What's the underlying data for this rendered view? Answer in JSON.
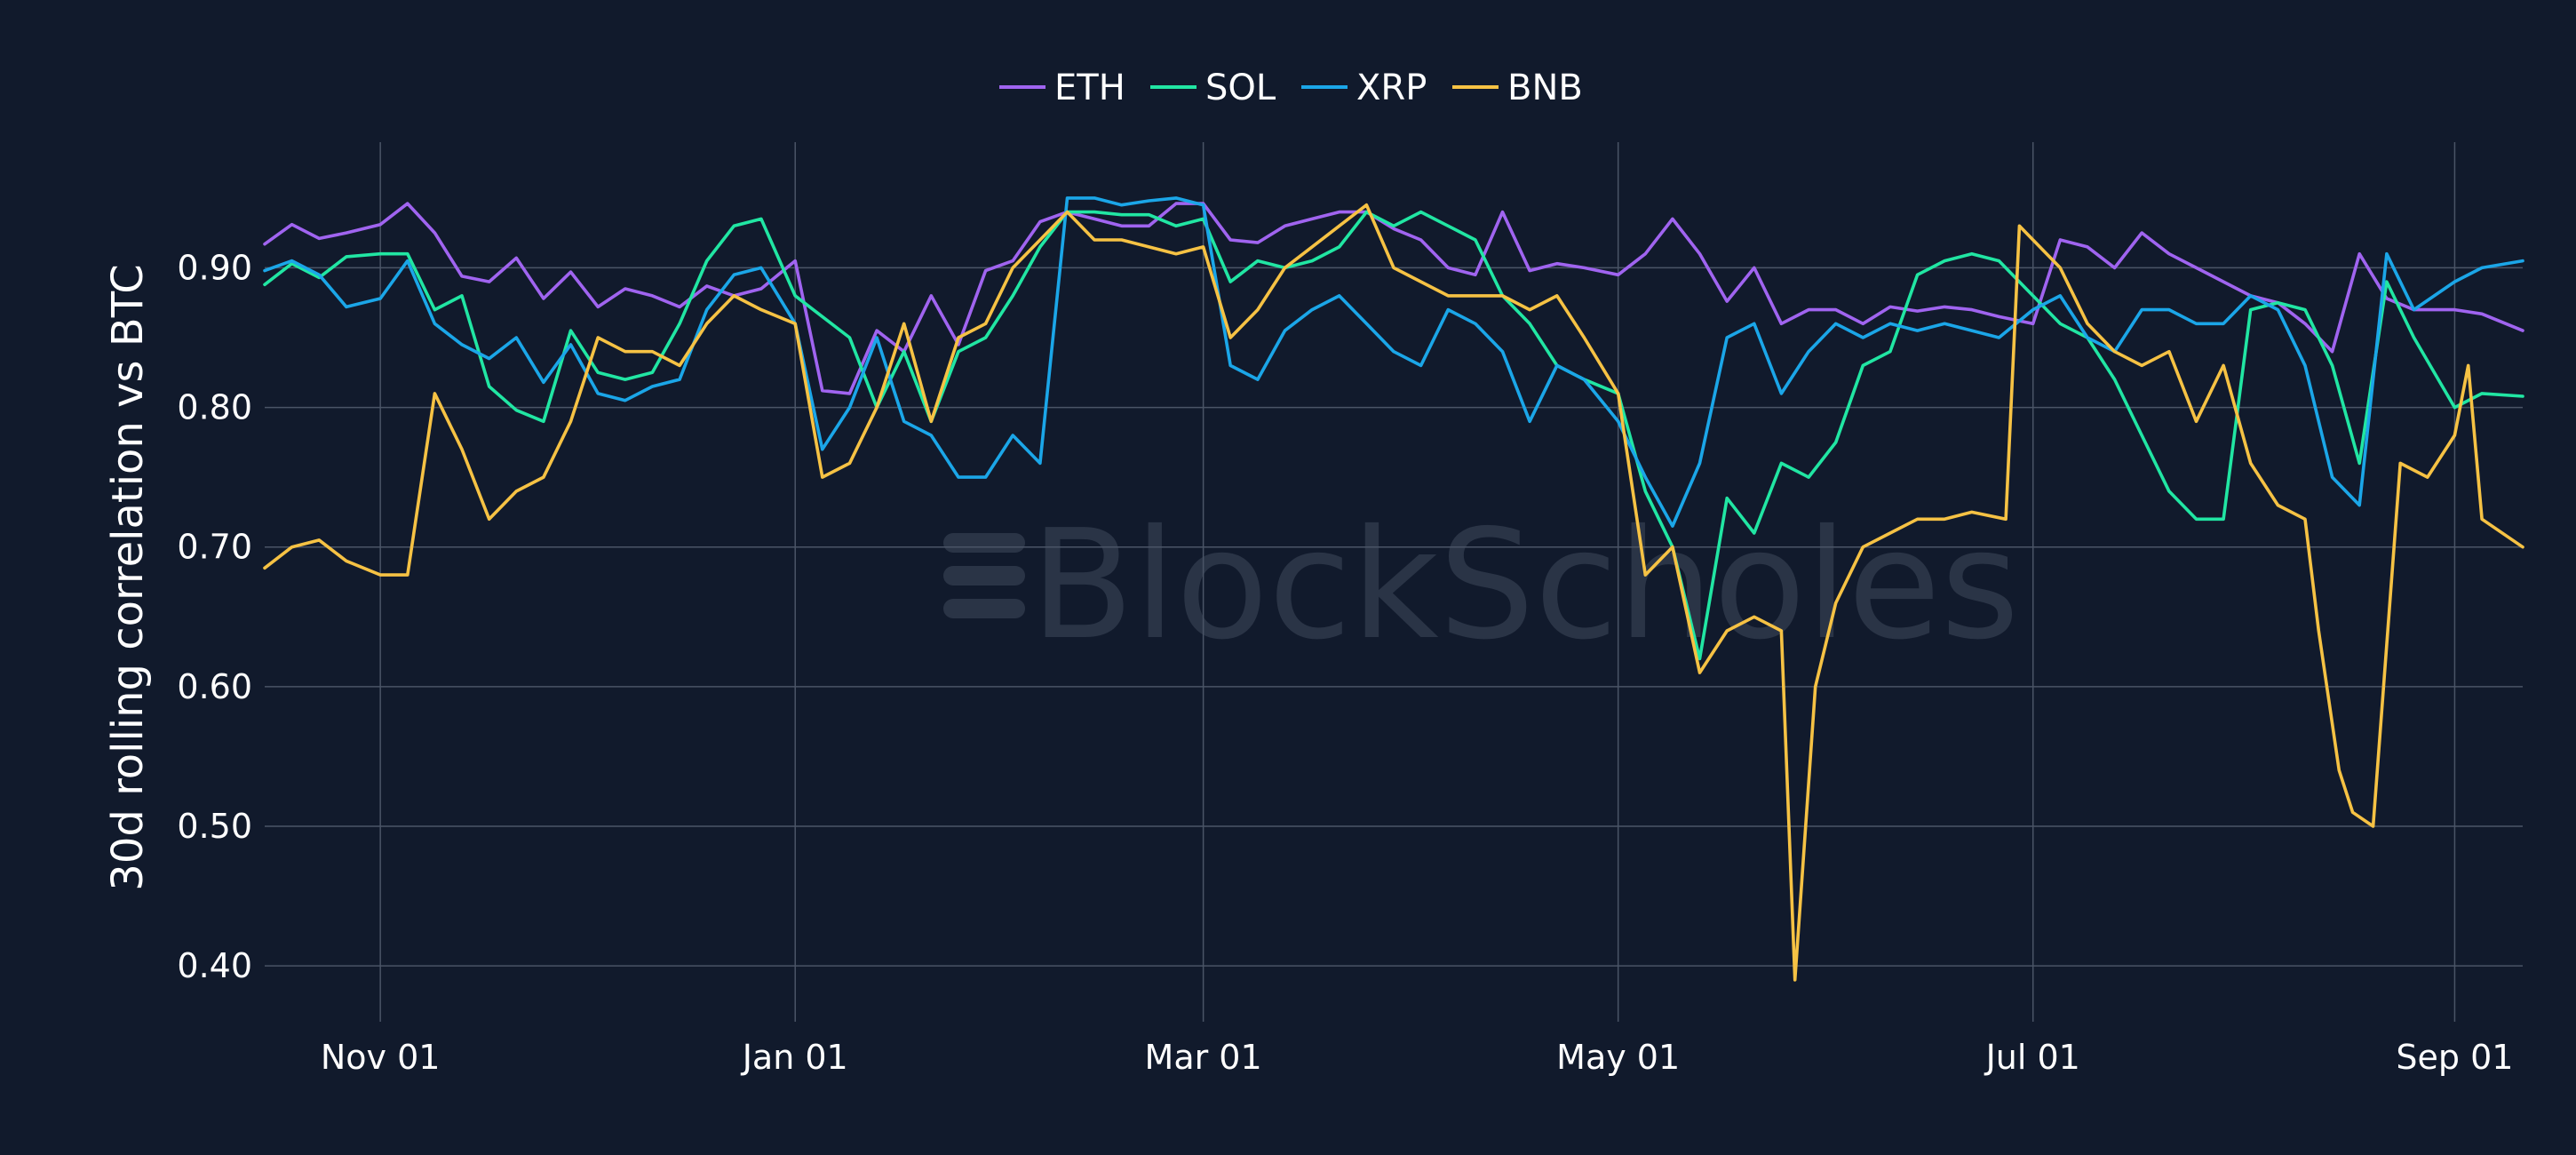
{
  "watermark": "BlockScholes",
  "chart_data": {
    "type": "line",
    "ylabel": "30d rolling correlation vs BTC",
    "xlabel": "",
    "ylim": [
      0.36,
      0.99
    ],
    "yticks": [
      0.4,
      0.5,
      0.6,
      0.7,
      0.8,
      0.9
    ],
    "ytick_labels": [
      "0.40",
      "0.50",
      "0.60",
      "0.70",
      "0.80",
      "0.90"
    ],
    "x_range": [
      "2023-10-15",
      "2024-09-11"
    ],
    "xticks": [
      "2023-11-01",
      "2024-01-01",
      "2024-03-01",
      "2024-05-01",
      "2024-07-01",
      "2024-09-01"
    ],
    "xtick_labels": [
      "Nov 01",
      "Jan 01",
      "Mar 01",
      "May 01",
      "Jul 01",
      "Sep 01"
    ],
    "grid": true,
    "legend_position": "top-center",
    "series": [
      {
        "name": "ETH",
        "color": "#a064f0",
        "x": [
          "2023-10-15",
          "2023-10-19",
          "2023-10-23",
          "2023-10-27",
          "2023-11-01",
          "2023-11-05",
          "2023-11-09",
          "2023-11-13",
          "2023-11-17",
          "2023-11-21",
          "2023-11-25",
          "2023-11-29",
          "2023-12-03",
          "2023-12-07",
          "2023-12-11",
          "2023-12-15",
          "2023-12-19",
          "2023-12-23",
          "2023-12-27",
          "2024-01-01",
          "2024-01-05",
          "2024-01-09",
          "2024-01-13",
          "2024-01-17",
          "2024-01-21",
          "2024-01-25",
          "2024-01-29",
          "2024-02-02",
          "2024-02-06",
          "2024-02-10",
          "2024-02-14",
          "2024-02-18",
          "2024-02-22",
          "2024-02-26",
          "2024-03-01",
          "2024-03-05",
          "2024-03-09",
          "2024-03-13",
          "2024-03-17",
          "2024-03-21",
          "2024-03-25",
          "2024-03-29",
          "2024-04-02",
          "2024-04-06",
          "2024-04-10",
          "2024-04-14",
          "2024-04-18",
          "2024-04-22",
          "2024-04-26",
          "2024-05-01",
          "2024-05-05",
          "2024-05-09",
          "2024-05-13",
          "2024-05-17",
          "2024-05-21",
          "2024-05-25",
          "2024-05-29",
          "2024-06-02",
          "2024-06-06",
          "2024-06-10",
          "2024-06-14",
          "2024-06-18",
          "2024-06-22",
          "2024-06-26",
          "2024-07-01",
          "2024-07-05",
          "2024-07-09",
          "2024-07-13",
          "2024-07-17",
          "2024-07-21",
          "2024-07-25",
          "2024-07-29",
          "2024-08-02",
          "2024-08-06",
          "2024-08-10",
          "2024-08-14",
          "2024-08-18",
          "2024-08-22",
          "2024-08-26",
          "2024-09-01",
          "2024-09-05",
          "2024-09-11"
        ],
        "values": [
          0.917,
          0.931,
          0.921,
          0.925,
          0.931,
          0.946,
          0.925,
          0.894,
          0.89,
          0.907,
          0.878,
          0.897,
          0.872,
          0.885,
          0.88,
          0.872,
          0.887,
          0.88,
          0.885,
          0.905,
          0.812,
          0.81,
          0.855,
          0.84,
          0.88,
          0.845,
          0.898,
          0.905,
          0.933,
          0.94,
          0.935,
          0.93,
          0.93,
          0.946,
          0.946,
          0.92,
          0.918,
          0.93,
          0.935,
          0.94,
          0.94,
          0.928,
          0.92,
          0.9,
          0.895,
          0.94,
          0.898,
          0.903,
          0.9,
          0.895,
          0.91,
          0.935,
          0.91,
          0.876,
          0.9,
          0.86,
          0.87,
          0.87,
          0.86,
          0.872,
          0.869,
          0.872,
          0.87,
          0.865,
          0.86,
          0.92,
          0.915,
          0.9,
          0.925,
          0.91,
          0.9,
          0.89,
          0.88,
          0.875,
          0.86,
          0.84,
          0.91,
          0.878,
          0.87,
          0.87,
          0.867,
          0.855
        ]
      },
      {
        "name": "SOL",
        "color": "#21e6a3",
        "x": [
          "2023-10-15",
          "2023-10-19",
          "2023-10-23",
          "2023-10-27",
          "2023-11-01",
          "2023-11-05",
          "2023-11-09",
          "2023-11-13",
          "2023-11-17",
          "2023-11-21",
          "2023-11-25",
          "2023-11-29",
          "2023-12-03",
          "2023-12-07",
          "2023-12-11",
          "2023-12-15",
          "2023-12-19",
          "2023-12-23",
          "2023-12-27",
          "2024-01-01",
          "2024-01-05",
          "2024-01-09",
          "2024-01-13",
          "2024-01-17",
          "2024-01-21",
          "2024-01-25",
          "2024-01-29",
          "2024-02-02",
          "2024-02-06",
          "2024-02-10",
          "2024-02-14",
          "2024-02-18",
          "2024-02-22",
          "2024-02-26",
          "2024-03-01",
          "2024-03-05",
          "2024-03-09",
          "2024-03-13",
          "2024-03-17",
          "2024-03-21",
          "2024-03-25",
          "2024-03-29",
          "2024-04-02",
          "2024-04-06",
          "2024-04-10",
          "2024-04-14",
          "2024-04-18",
          "2024-04-22",
          "2024-04-26",
          "2024-05-01",
          "2024-05-05",
          "2024-05-09",
          "2024-05-13",
          "2024-05-17",
          "2024-05-21",
          "2024-05-25",
          "2024-05-29",
          "2024-06-02",
          "2024-06-06",
          "2024-06-10",
          "2024-06-14",
          "2024-06-18",
          "2024-06-22",
          "2024-06-26",
          "2024-07-01",
          "2024-07-05",
          "2024-07-09",
          "2024-07-13",
          "2024-07-17",
          "2024-07-21",
          "2024-07-25",
          "2024-07-29",
          "2024-08-02",
          "2024-08-06",
          "2024-08-10",
          "2024-08-14",
          "2024-08-18",
          "2024-08-22",
          "2024-08-26",
          "2024-09-01",
          "2024-09-05",
          "2024-09-11"
        ],
        "values": [
          0.888,
          0.903,
          0.893,
          0.908,
          0.91,
          0.91,
          0.87,
          0.88,
          0.815,
          0.798,
          0.79,
          0.855,
          0.825,
          0.82,
          0.825,
          0.86,
          0.905,
          0.93,
          0.935,
          0.88,
          0.865,
          0.85,
          0.8,
          0.84,
          0.79,
          0.84,
          0.85,
          0.88,
          0.915,
          0.94,
          0.94,
          0.938,
          0.938,
          0.93,
          0.935,
          0.89,
          0.905,
          0.9,
          0.905,
          0.915,
          0.94,
          0.93,
          0.94,
          0.93,
          0.92,
          0.88,
          0.86,
          0.83,
          0.82,
          0.81,
          0.74,
          0.7,
          0.62,
          0.735,
          0.71,
          0.76,
          0.75,
          0.775,
          0.83,
          0.84,
          0.895,
          0.905,
          0.91,
          0.905,
          0.88,
          0.86,
          0.85,
          0.82,
          0.78,
          0.74,
          0.72,
          0.72,
          0.87,
          0.875,
          0.87,
          0.83,
          0.76,
          0.89,
          0.85,
          0.8,
          0.81,
          0.808
        ]
      },
      {
        "name": "XRP",
        "color": "#1ba6e8",
        "x": [
          "2023-10-15",
          "2023-10-19",
          "2023-10-23",
          "2023-10-27",
          "2023-11-01",
          "2023-11-05",
          "2023-11-09",
          "2023-11-13",
          "2023-11-17",
          "2023-11-21",
          "2023-11-25",
          "2023-11-29",
          "2023-12-03",
          "2023-12-07",
          "2023-12-11",
          "2023-12-15",
          "2023-12-19",
          "2023-12-23",
          "2023-12-27",
          "2024-01-01",
          "2024-01-05",
          "2024-01-09",
          "2024-01-13",
          "2024-01-17",
          "2024-01-21",
          "2024-01-25",
          "2024-01-29",
          "2024-02-02",
          "2024-02-06",
          "2024-02-10",
          "2024-02-14",
          "2024-02-18",
          "2024-02-22",
          "2024-02-26",
          "2024-03-01",
          "2024-03-05",
          "2024-03-09",
          "2024-03-13",
          "2024-03-17",
          "2024-03-21",
          "2024-03-25",
          "2024-03-29",
          "2024-04-02",
          "2024-04-06",
          "2024-04-10",
          "2024-04-14",
          "2024-04-18",
          "2024-04-22",
          "2024-04-26",
          "2024-05-01",
          "2024-05-05",
          "2024-05-09",
          "2024-05-13",
          "2024-05-17",
          "2024-05-21",
          "2024-05-25",
          "2024-05-29",
          "2024-06-02",
          "2024-06-06",
          "2024-06-10",
          "2024-06-14",
          "2024-06-18",
          "2024-06-22",
          "2024-06-26",
          "2024-07-01",
          "2024-07-05",
          "2024-07-09",
          "2024-07-13",
          "2024-07-17",
          "2024-07-21",
          "2024-07-25",
          "2024-07-29",
          "2024-08-02",
          "2024-08-06",
          "2024-08-10",
          "2024-08-14",
          "2024-08-18",
          "2024-08-22",
          "2024-08-26",
          "2024-09-01",
          "2024-09-05",
          "2024-09-11"
        ],
        "values": [
          0.898,
          0.905,
          0.895,
          0.872,
          0.878,
          0.905,
          0.86,
          0.845,
          0.835,
          0.85,
          0.818,
          0.845,
          0.81,
          0.805,
          0.815,
          0.82,
          0.87,
          0.895,
          0.9,
          0.86,
          0.77,
          0.8,
          0.85,
          0.79,
          0.78,
          0.75,
          0.75,
          0.78,
          0.76,
          0.95,
          0.95,
          0.945,
          0.948,
          0.95,
          0.945,
          0.83,
          0.82,
          0.855,
          0.87,
          0.88,
          0.86,
          0.84,
          0.83,
          0.87,
          0.86,
          0.84,
          0.79,
          0.83,
          0.82,
          0.79,
          0.75,
          0.715,
          0.76,
          0.85,
          0.86,
          0.81,
          0.84,
          0.86,
          0.85,
          0.86,
          0.855,
          0.86,
          0.855,
          0.85,
          0.87,
          0.88,
          0.85,
          0.84,
          0.87,
          0.87,
          0.86,
          0.86,
          0.88,
          0.87,
          0.83,
          0.75,
          0.73,
          0.91,
          0.87,
          0.89,
          0.9,
          0.905
        ]
      },
      {
        "name": "BNB",
        "color": "#f6c244",
        "x": [
          "2023-10-15",
          "2023-10-19",
          "2023-10-23",
          "2023-10-27",
          "2023-11-01",
          "2023-11-05",
          "2023-11-09",
          "2023-11-13",
          "2023-11-17",
          "2023-11-21",
          "2023-11-25",
          "2023-11-29",
          "2023-12-03",
          "2023-12-07",
          "2023-12-11",
          "2023-12-15",
          "2023-12-19",
          "2023-12-23",
          "2023-12-27",
          "2024-01-01",
          "2024-01-05",
          "2024-01-09",
          "2024-01-13",
          "2024-01-17",
          "2024-01-21",
          "2024-01-25",
          "2024-01-29",
          "2024-02-02",
          "2024-02-06",
          "2024-02-10",
          "2024-02-14",
          "2024-02-18",
          "2024-02-22",
          "2024-02-26",
          "2024-03-01",
          "2024-03-05",
          "2024-03-09",
          "2024-03-13",
          "2024-03-17",
          "2024-03-21",
          "2024-03-25",
          "2024-03-29",
          "2024-04-02",
          "2024-04-06",
          "2024-04-10",
          "2024-04-14",
          "2024-04-18",
          "2024-04-22",
          "2024-04-26",
          "2024-05-01",
          "2024-05-05",
          "2024-05-09",
          "2024-05-13",
          "2024-05-17",
          "2024-05-21",
          "2024-05-25",
          "2024-05-27",
          "2024-05-30",
          "2024-06-02",
          "2024-06-06",
          "2024-06-10",
          "2024-06-14",
          "2024-06-18",
          "2024-06-22",
          "2024-06-27",
          "2024-06-29",
          "2024-07-01",
          "2024-07-05",
          "2024-07-09",
          "2024-07-13",
          "2024-07-17",
          "2024-07-21",
          "2024-07-25",
          "2024-07-29",
          "2024-08-02",
          "2024-08-06",
          "2024-08-10",
          "2024-08-12",
          "2024-08-15",
          "2024-08-17",
          "2024-08-20",
          "2024-08-24",
          "2024-08-28",
          "2024-09-01",
          "2024-09-03",
          "2024-09-05",
          "2024-09-11"
        ],
        "values": [
          0.685,
          0.7,
          0.705,
          0.69,
          0.68,
          0.68,
          0.81,
          0.77,
          0.72,
          0.74,
          0.75,
          0.79,
          0.85,
          0.84,
          0.84,
          0.83,
          0.86,
          0.88,
          0.87,
          0.86,
          0.75,
          0.76,
          0.8,
          0.86,
          0.79,
          0.85,
          0.86,
          0.9,
          0.92,
          0.94,
          0.92,
          0.92,
          0.915,
          0.91,
          0.915,
          0.85,
          0.87,
          0.9,
          0.915,
          0.93,
          0.945,
          0.9,
          0.89,
          0.88,
          0.88,
          0.88,
          0.87,
          0.88,
          0.85,
          0.81,
          0.68,
          0.7,
          0.61,
          0.64,
          0.65,
          0.64,
          0.39,
          0.6,
          0.66,
          0.7,
          0.71,
          0.72,
          0.72,
          0.725,
          0.72,
          0.93,
          0.92,
          0.9,
          0.86,
          0.84,
          0.83,
          0.84,
          0.79,
          0.83,
          0.76,
          0.73,
          0.72,
          0.64,
          0.54,
          0.51,
          0.5,
          0.76,
          0.75,
          0.78,
          0.83,
          0.72,
          0.7
        ]
      }
    ]
  }
}
